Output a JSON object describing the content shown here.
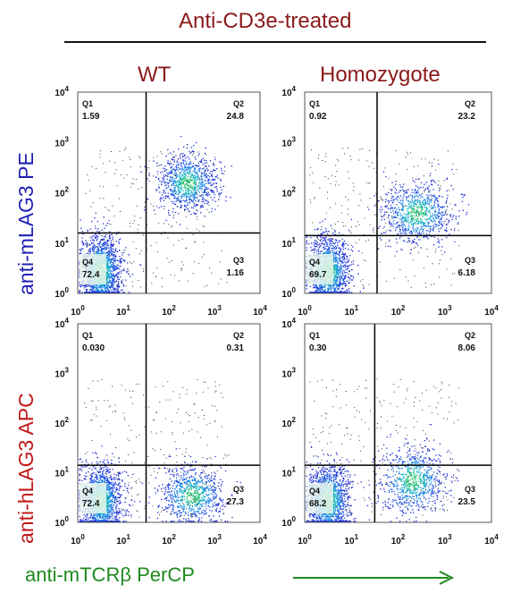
{
  "header": {
    "title": "Anti-CD3e-treated"
  },
  "columns": [
    "WT",
    "Homozygote"
  ],
  "rows": [
    {
      "label": "anti-mLAG3 PE",
      "color": "#1f1fb4"
    },
    {
      "label": "anti-hLAG3 APC",
      "color": "#c01818"
    }
  ],
  "x_axis_title": "anti-mTCRβ PerCP",
  "colors": {
    "title": "#8b1a1a",
    "x_axis": "#1e8a1e",
    "gate": "#000000"
  },
  "chart_data": [
    {
      "type": "scatter",
      "panel": "WT / anti-mLAG3 PE",
      "xscale": "log",
      "yscale": "log",
      "xlim": [
        1,
        10000
      ],
      "ylim": [
        1,
        10000
      ],
      "tick_labels": [
        "10^0",
        "10^1",
        "10^2",
        "10^3",
        "10^4"
      ],
      "quadrants": [
        {
          "name": "Q1",
          "value": "1.59"
        },
        {
          "name": "Q2",
          "value": "24.8"
        },
        {
          "name": "Q3",
          "value": "1.16"
        },
        {
          "name": "Q4",
          "value": "72.4"
        }
      ]
    },
    {
      "type": "scatter",
      "panel": "Homozygote / anti-mLAG3 PE",
      "xscale": "log",
      "yscale": "log",
      "xlim": [
        1,
        10000
      ],
      "ylim": [
        1,
        10000
      ],
      "tick_labels": [
        "10^0",
        "10^1",
        "10^2",
        "10^3",
        "10^4"
      ],
      "quadrants": [
        {
          "name": "Q1",
          "value": "0.92"
        },
        {
          "name": "Q2",
          "value": "23.2"
        },
        {
          "name": "Q3",
          "value": "6.18"
        },
        {
          "name": "Q4",
          "value": "69.7"
        }
      ]
    },
    {
      "type": "scatter",
      "panel": "WT / anti-hLAG3 APC",
      "xscale": "log",
      "yscale": "log",
      "xlim": [
        1,
        10000
      ],
      "ylim": [
        1,
        10000
      ],
      "tick_labels": [
        "10^0",
        "10^1",
        "10^2",
        "10^3",
        "10^4"
      ],
      "quadrants": [
        {
          "name": "Q1",
          "value": "0.030"
        },
        {
          "name": "Q2",
          "value": "0.31"
        },
        {
          "name": "Q3",
          "value": "27.3"
        },
        {
          "name": "Q4",
          "value": "72.4"
        }
      ]
    },
    {
      "type": "scatter",
      "panel": "Homozygote / anti-hLAG3 APC",
      "xscale": "log",
      "yscale": "log",
      "xlim": [
        1,
        10000
      ],
      "ylim": [
        1,
        10000
      ],
      "tick_labels": [
        "10^0",
        "10^1",
        "10^2",
        "10^3",
        "10^4"
      ],
      "quadrants": [
        {
          "name": "Q1",
          "value": "0.30"
        },
        {
          "name": "Q2",
          "value": "8.06"
        },
        {
          "name": "Q3",
          "value": "23.5"
        },
        {
          "name": "Q4",
          "value": "68.2"
        }
      ]
    }
  ]
}
